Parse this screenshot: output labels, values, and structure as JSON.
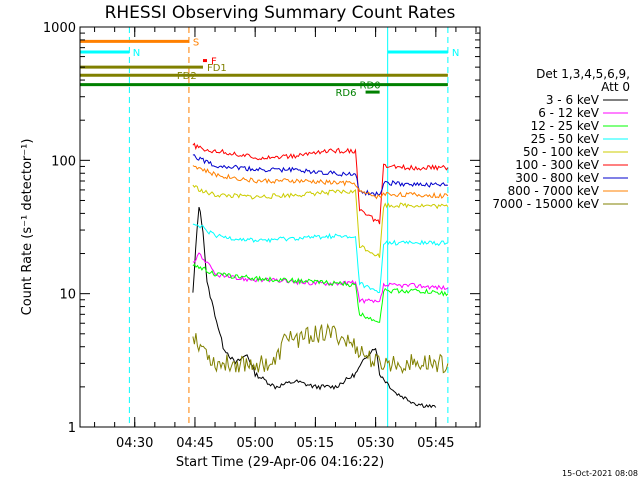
{
  "chart_data": {
    "type": "line",
    "title": "RHESSI Observing Summary Count Rates",
    "xlabel": "Start Time (29-Apr-06 04:16:22)",
    "ylabel": "Count Rate (s⁻¹ detector⁻¹)",
    "y_scale": "log",
    "ylim": [
      1,
      1000
    ],
    "y_ticks": [
      {
        "value": 1,
        "label": "1"
      },
      {
        "value": 10,
        "label": "10"
      },
      {
        "value": 100,
        "label": "100"
      },
      {
        "value": 1000,
        "label": "1000"
      }
    ],
    "xlim": [
      "04:16:22",
      "05:56:00"
    ],
    "x_ticks": [
      {
        "time": "04:30",
        "label": "04:30"
      },
      {
        "time": "04:45",
        "label": "04:45"
      },
      {
        "time": "05:00",
        "label": "05:00"
      },
      {
        "time": "05:15",
        "label": "05:15"
      },
      {
        "time": "05:30",
        "label": "05:30"
      },
      {
        "time": "05:45",
        "label": "05:45"
      }
    ],
    "legend_header": [
      "Det 1,3,4,5,6,9,",
      "Att 0"
    ],
    "legend_position": "right",
    "series": [
      {
        "name": "3 - 6 keV",
        "color": "#000000",
        "points": [
          [
            "04:44:30",
            10
          ],
          [
            "04:45:30",
            30
          ],
          [
            "04:46:00",
            46
          ],
          [
            "04:47:00",
            30
          ],
          [
            "04:48:00",
            12
          ],
          [
            "04:50:00",
            7
          ],
          [
            "04:52:00",
            4
          ],
          [
            "04:55:00",
            3
          ],
          [
            "04:58:00",
            3.5
          ],
          [
            "05:00:00",
            2.5
          ],
          [
            "05:05:00",
            2
          ],
          [
            "05:10:00",
            2.2
          ],
          [
            "05:15:00",
            2
          ],
          [
            "05:20:00",
            2
          ],
          [
            "05:25:00",
            2.5
          ],
          [
            "05:28:00",
            3.5
          ],
          [
            "05:30:00",
            4
          ],
          [
            "05:31:00",
            2.5
          ],
          [
            "05:35:00",
            1.8
          ],
          [
            "05:40:00",
            1.5
          ],
          [
            "05:45:00",
            1.4
          ]
        ]
      },
      {
        "name": "6 - 12 keV",
        "color": "#ff00ff",
        "points": [
          [
            "04:44:30",
            17
          ],
          [
            "04:46:00",
            20
          ],
          [
            "04:48:00",
            17
          ],
          [
            "04:50:00",
            14
          ],
          [
            "04:55:00",
            13
          ],
          [
            "05:05:00",
            12.5
          ],
          [
            "05:15:00",
            12
          ],
          [
            "05:25:00",
            12
          ],
          [
            "05:26:00",
            9
          ],
          [
            "05:31:00",
            8.5
          ],
          [
            "05:32:00",
            11.5
          ],
          [
            "05:40:00",
            11.5
          ],
          [
            "05:48:00",
            11
          ]
        ]
      },
      {
        "name": "12 - 25 keV",
        "color": "#00ff00",
        "points": [
          [
            "04:44:30",
            16
          ],
          [
            "04:46:00",
            16
          ],
          [
            "04:50:00",
            14
          ],
          [
            "05:00:00",
            13
          ],
          [
            "05:10:00",
            12.5
          ],
          [
            "05:20:00",
            12
          ],
          [
            "05:25:00",
            11.5
          ],
          [
            "05:26:00",
            7
          ],
          [
            "05:31:00",
            6.2
          ],
          [
            "05:32:00",
            10.5
          ],
          [
            "05:40:00",
            10.5
          ],
          [
            "05:48:00",
            10
          ]
        ]
      },
      {
        "name": "25 - 50 keV",
        "color": "#00ffff",
        "points": [
          [
            "04:44:30",
            33
          ],
          [
            "04:47:00",
            31
          ],
          [
            "04:50:00",
            27
          ],
          [
            "05:00:00",
            25
          ],
          [
            "05:10:00",
            26
          ],
          [
            "05:20:00",
            27
          ],
          [
            "05:25:00",
            26
          ],
          [
            "05:26:00",
            12
          ],
          [
            "05:31:00",
            10
          ],
          [
            "05:32:00",
            24
          ],
          [
            "05:40:00",
            24
          ],
          [
            "05:48:00",
            24
          ]
        ]
      },
      {
        "name": "50 - 100 keV",
        "color": "#cccc00",
        "points": [
          [
            "04:44:30",
            65
          ],
          [
            "04:47:00",
            58
          ],
          [
            "04:50:00",
            55
          ],
          [
            "05:00:00",
            53
          ],
          [
            "05:10:00",
            55
          ],
          [
            "05:20:00",
            58
          ],
          [
            "05:25:00",
            58
          ],
          [
            "05:26:00",
            23
          ],
          [
            "05:31:00",
            19
          ],
          [
            "05:32:00",
            46
          ],
          [
            "05:40:00",
            46
          ],
          [
            "05:48:00",
            45
          ]
        ]
      },
      {
        "name": "100 - 300 keV",
        "color": "#ff0000",
        "points": [
          [
            "04:44:30",
            130
          ],
          [
            "04:47:00",
            120
          ],
          [
            "04:50:00",
            118
          ],
          [
            "05:00:00",
            105
          ],
          [
            "05:10:00",
            107
          ],
          [
            "05:15:00",
            115
          ],
          [
            "05:20:00",
            118
          ],
          [
            "05:25:00",
            118
          ],
          [
            "05:26:00",
            42
          ],
          [
            "05:31:00",
            34
          ],
          [
            "05:32:00",
            90
          ],
          [
            "05:40:00",
            88
          ],
          [
            "05:48:00",
            88
          ]
        ]
      },
      {
        "name": "300 - 800 keV",
        "color": "#0000cc",
        "points": [
          [
            "04:44:30",
            110
          ],
          [
            "04:47:00",
            100
          ],
          [
            "04:50:00",
            92
          ],
          [
            "05:00:00",
            85
          ],
          [
            "05:10:00",
            85
          ],
          [
            "05:15:00",
            82
          ],
          [
            "05:20:00",
            80
          ],
          [
            "05:25:00",
            78
          ],
          [
            "05:26:00",
            58
          ],
          [
            "05:31:00",
            55
          ],
          [
            "05:32:00",
            68
          ],
          [
            "05:40:00",
            66
          ],
          [
            "05:48:00",
            65
          ]
        ]
      },
      {
        "name": "800 - 7000 keV",
        "color": "#ff8000",
        "points": [
          [
            "04:44:30",
            92
          ],
          [
            "04:47:00",
            85
          ],
          [
            "04:50:00",
            78
          ],
          [
            "05:00:00",
            70
          ],
          [
            "05:10:00",
            70
          ],
          [
            "05:20:00",
            68
          ],
          [
            "05:25:00",
            67
          ],
          [
            "05:26:00",
            58
          ],
          [
            "05:31:00",
            53
          ],
          [
            "05:32:00",
            56
          ],
          [
            "05:40:00",
            55
          ],
          [
            "05:48:00",
            54
          ]
        ]
      },
      {
        "name": "7000 - 15000 keV",
        "color": "#808000",
        "points": [
          [
            "04:44:30",
            5
          ],
          [
            "04:50:00",
            3
          ],
          [
            "05:00:00",
            3
          ],
          [
            "05:05:00",
            3
          ],
          [
            "05:08:00",
            5
          ],
          [
            "05:10:00",
            4.5
          ],
          [
            "05:15:00",
            5
          ],
          [
            "05:20:00",
            5
          ],
          [
            "05:25:00",
            4
          ],
          [
            "05:30:00",
            3
          ],
          [
            "05:40:00",
            3
          ],
          [
            "05:48:00",
            3
          ]
        ]
      }
    ],
    "flags": [
      {
        "label": "S",
        "color": "#ff8000",
        "start": "04:16:22",
        "end": "04:43:30",
        "value": 780
      },
      {
        "label": "N",
        "color": "#00ffff",
        "start": "04:16:22",
        "end": "04:28:40",
        "value": 650,
        "label_time": "04:29:30"
      },
      {
        "label": "N",
        "color": "#00ffff",
        "start": "05:33:00",
        "end": "05:48:00",
        "value": 650
      },
      {
        "label": "F",
        "color": "#ff0000",
        "start": "04:47:00",
        "end": "04:48:00",
        "value": 560
      },
      {
        "label": "FD1",
        "color": "#808000",
        "start": "04:16:22",
        "end": "04:47:00",
        "value": 500
      },
      {
        "label": "FD2",
        "color": "#808000",
        "start": "04:16:22",
        "end": "05:48:00",
        "value": 435,
        "label_time": "04:40:30"
      },
      {
        "label": "RD0",
        "color": "#008000",
        "start": "04:16:22",
        "end": "05:48:00",
        "value": 370,
        "label_time": "05:26:00"
      },
      {
        "label": "RD6",
        "color": "#008000",
        "start": "05:27:30",
        "end": "05:31:00",
        "value": 325,
        "label_time": "05:20:00"
      }
    ],
    "vlines": [
      {
        "time": "04:16:22",
        "color": "#00ffff",
        "dash": false
      },
      {
        "time": "04:28:40",
        "color": "#00ffff",
        "dash": true
      },
      {
        "time": "04:43:30",
        "color": "#ff8000",
        "dash": true
      },
      {
        "time": "05:33:00",
        "color": "#00ffff",
        "dash": false
      },
      {
        "time": "05:48:00",
        "color": "#00ffff",
        "dash": true
      }
    ],
    "timestamp": "15-Oct-2021 08:08"
  }
}
